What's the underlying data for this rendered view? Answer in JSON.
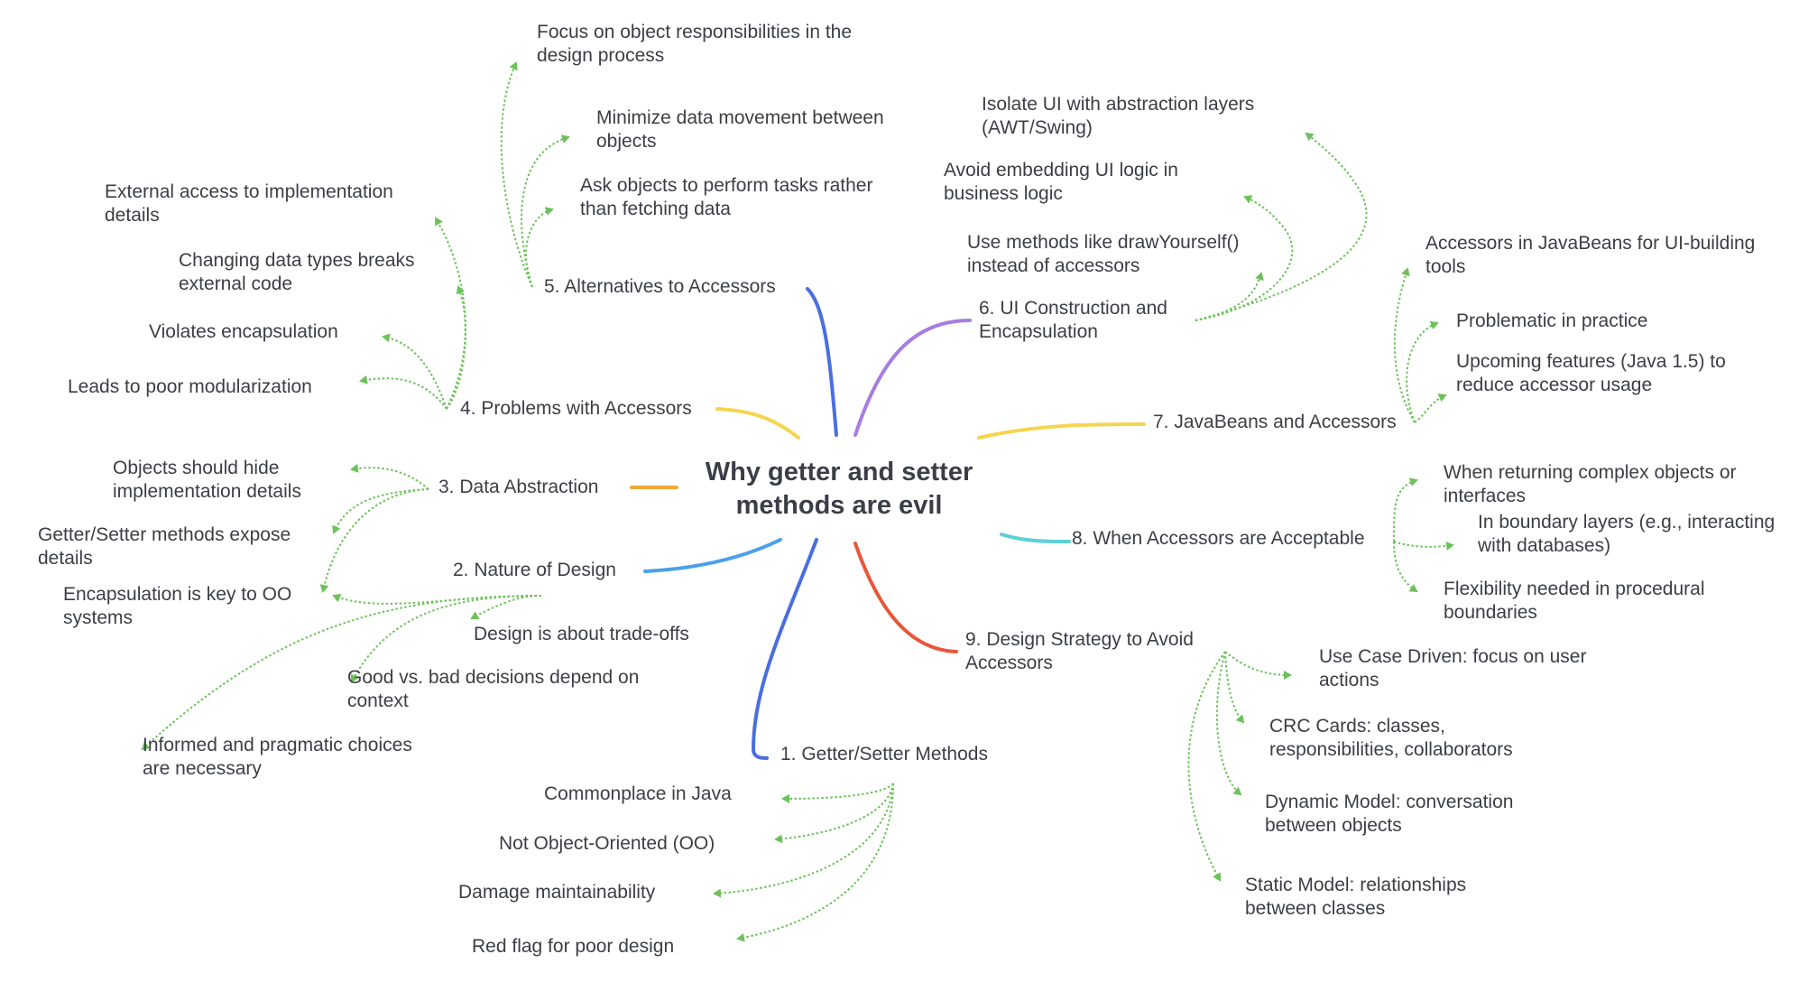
{
  "center": "Why getter and setter methods are evil",
  "colors": {
    "branch_1": "#4a6ee0",
    "branch_2": "#4aa0ea",
    "branch_3": "#f0a83c",
    "branch_4": "#f5d44f",
    "branch_5": "#4a6ee0",
    "branch_6": "#a77de0",
    "branch_7": "#f5d44f",
    "branch_8": "#5bd0d8",
    "branch_9": "#e8563a",
    "leaf_connector": "#6cc25a"
  },
  "topics": {
    "t1": {
      "label": "1. Getter/Setter Methods",
      "children": [
        "Commonplace in Java",
        "Not Object-Oriented (OO)",
        "Damage maintainability",
        "Red flag for poor design"
      ]
    },
    "t2": {
      "label": "2. Nature of Design",
      "children": [
        "Encapsulation is key to OO systems",
        "Design is about trade-offs",
        "Good vs. bad decisions depend on context",
        "Informed and pragmatic choices are necessary"
      ]
    },
    "t3": {
      "label": "3. Data Abstraction",
      "children": [
        "Objects should hide implementation details",
        "Getter/Setter methods expose details"
      ]
    },
    "t4": {
      "label": "4. Problems with Accessors",
      "children": [
        "External access to implementation details",
        "Changing data types breaks external code",
        "Violates encapsulation",
        "Leads to poor modularization"
      ]
    },
    "t5": {
      "label": "5. Alternatives to Accessors",
      "children": [
        "Focus on object responsibilities in the design process",
        "Minimize data movement between objects",
        "Ask objects to perform tasks rather than fetching data"
      ]
    },
    "t6": {
      "label": "6. UI Construction and Encapsulation",
      "children": [
        "Isolate UI with abstraction layers (AWT/Swing)",
        "Avoid embedding UI logic in business logic",
        "Use methods like drawYourself() instead of accessors"
      ]
    },
    "t7": {
      "label": "7. JavaBeans and Accessors",
      "children": [
        "Accessors in JavaBeans for UI-building tools",
        "Problematic in practice",
        "Upcoming features (Java 1.5) to reduce accessor usage"
      ]
    },
    "t8": {
      "label": "8. When Accessors are Acceptable",
      "children": [
        "When returning complex objects or interfaces",
        "In boundary layers (e.g., interacting with databases)",
        "Flexibility needed in procedural boundaries"
      ]
    },
    "t9": {
      "label": "9. Design Strategy to Avoid Accessors",
      "children": [
        "Use Case Driven: focus on user actions",
        "CRC Cards: classes, responsibilities, collaborators",
        "Dynamic Model: conversation between objects",
        "Static Model: relationships between classes"
      ]
    }
  }
}
